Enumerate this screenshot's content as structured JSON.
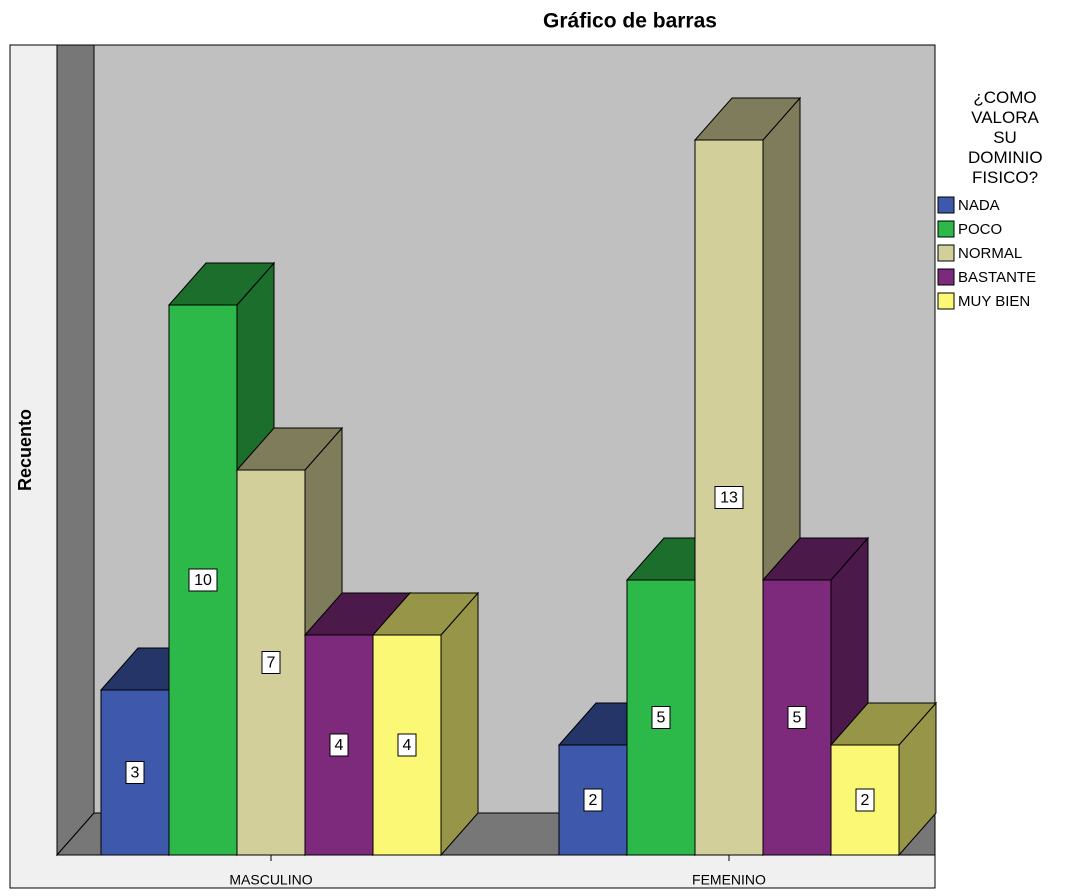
{
  "chart_data": {
    "type": "bar3d",
    "title": "Gráfico de barras",
    "y_label": "Recuento",
    "categories": [
      "MASCULINO",
      "FEMENINO"
    ],
    "legend_title": "¿COMO VALORA SU DOMINIO FISICO?",
    "series": [
      {
        "name": "NADA",
        "color": "#3e58ac",
        "values": [
          3,
          2
        ]
      },
      {
        "name": "POCO",
        "color": "#2db84a",
        "values": [
          10,
          5
        ]
      },
      {
        "name": "NORMAL",
        "color": "#d3cf9a",
        "values": [
          7,
          13
        ]
      },
      {
        "name": "BASTANTE",
        "color": "#7d2a7c",
        "values": [
          4,
          5
        ]
      },
      {
        "name": "MUY BIEN",
        "color": "#fbf876",
        "values": [
          4,
          2
        ]
      }
    ],
    "ylim": [
      0,
      14
    ]
  }
}
